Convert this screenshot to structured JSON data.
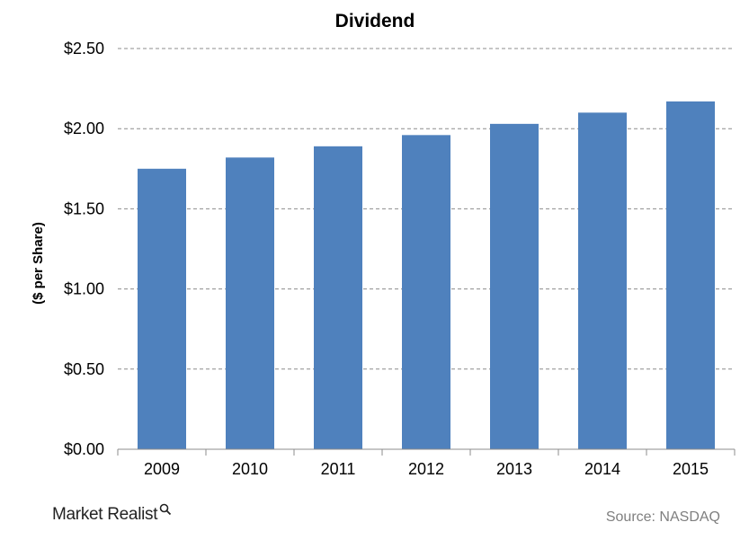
{
  "chart_data": {
    "type": "bar",
    "title": "Dividend",
    "xlabel": "",
    "ylabel": "($ per Share)",
    "categories": [
      "2009",
      "2010",
      "2011",
      "2012",
      "2013",
      "2014",
      "2015"
    ],
    "values": [
      1.75,
      1.82,
      1.89,
      1.96,
      2.03,
      2.1,
      2.17
    ],
    "ylim": [
      0,
      2.5
    ],
    "yticks": [
      "$0.00",
      "$0.50",
      "$1.00",
      "$1.50",
      "$2.00",
      "$2.50"
    ],
    "grid": true,
    "bar_color": "#4f81bd"
  },
  "footer": {
    "brand": "Market Realist",
    "source": "Source: NASDAQ"
  }
}
